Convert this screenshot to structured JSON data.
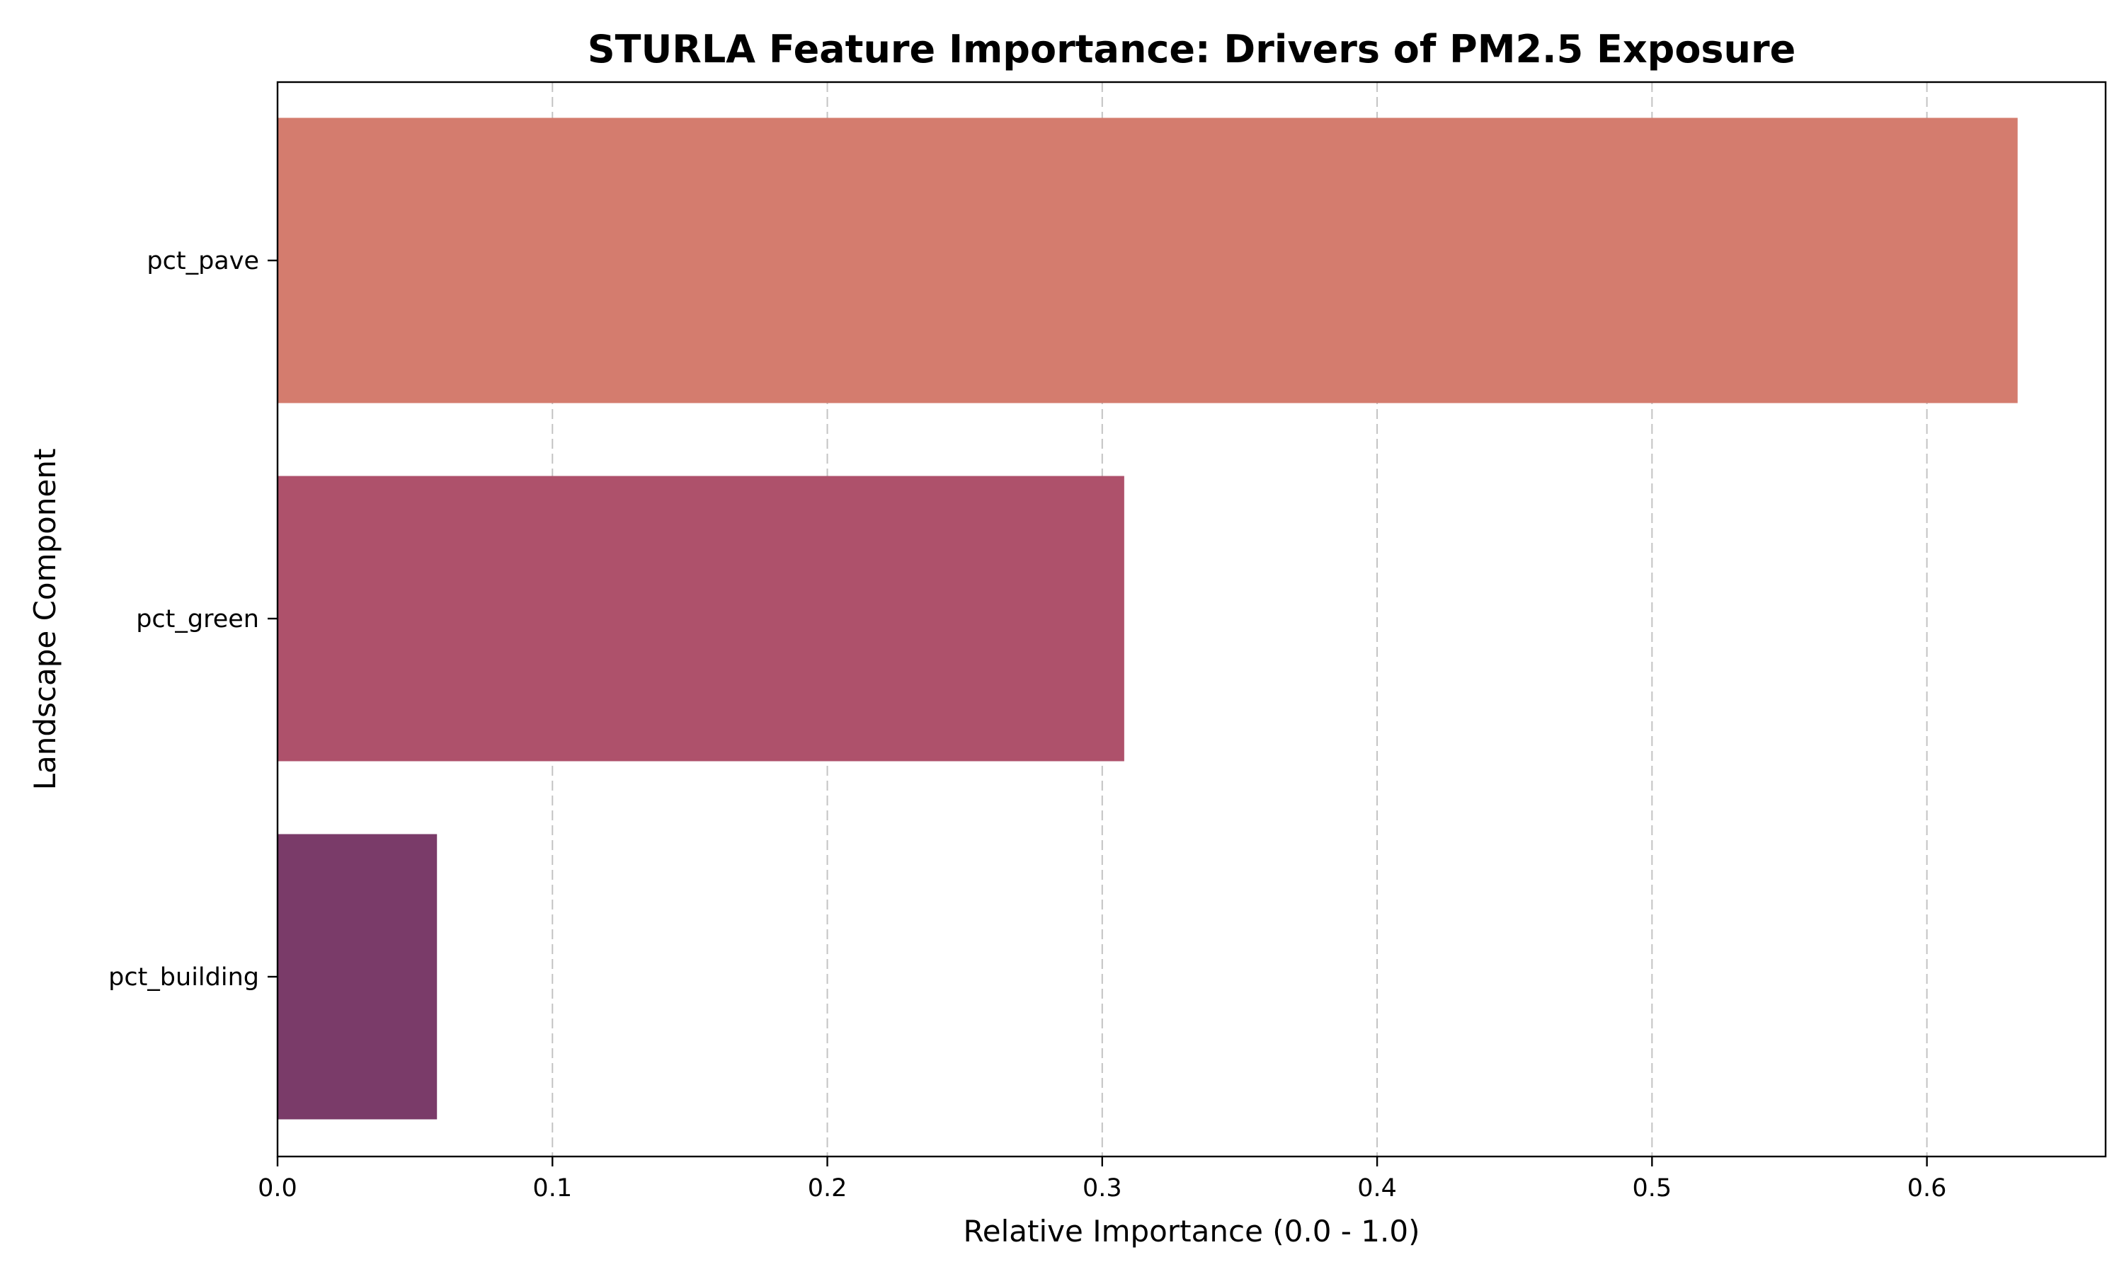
{
  "chart_data": {
    "type": "bar",
    "orientation": "horizontal",
    "title": "STURLA Feature Importance: Drivers of PM2.5 Exposure",
    "xlabel": "Relative Importance (0.0 - 1.0)",
    "ylabel": "Landscape Component",
    "categories": [
      "pct_pave",
      "pct_green",
      "pct_building"
    ],
    "values": [
      0.633,
      0.308,
      0.058
    ],
    "colors": [
      "#d47c6e",
      "#ae516b",
      "#7a3b69"
    ],
    "xlim": [
      0,
      0.665
    ],
    "xticks": [
      0.0,
      0.1,
      0.2,
      0.3,
      0.4,
      0.5,
      0.6
    ],
    "xtick_labels": [
      "0.0",
      "0.1",
      "0.2",
      "0.3",
      "0.4",
      "0.5",
      "0.6"
    ],
    "grid": "x-axis dashed",
    "legend": "none"
  }
}
